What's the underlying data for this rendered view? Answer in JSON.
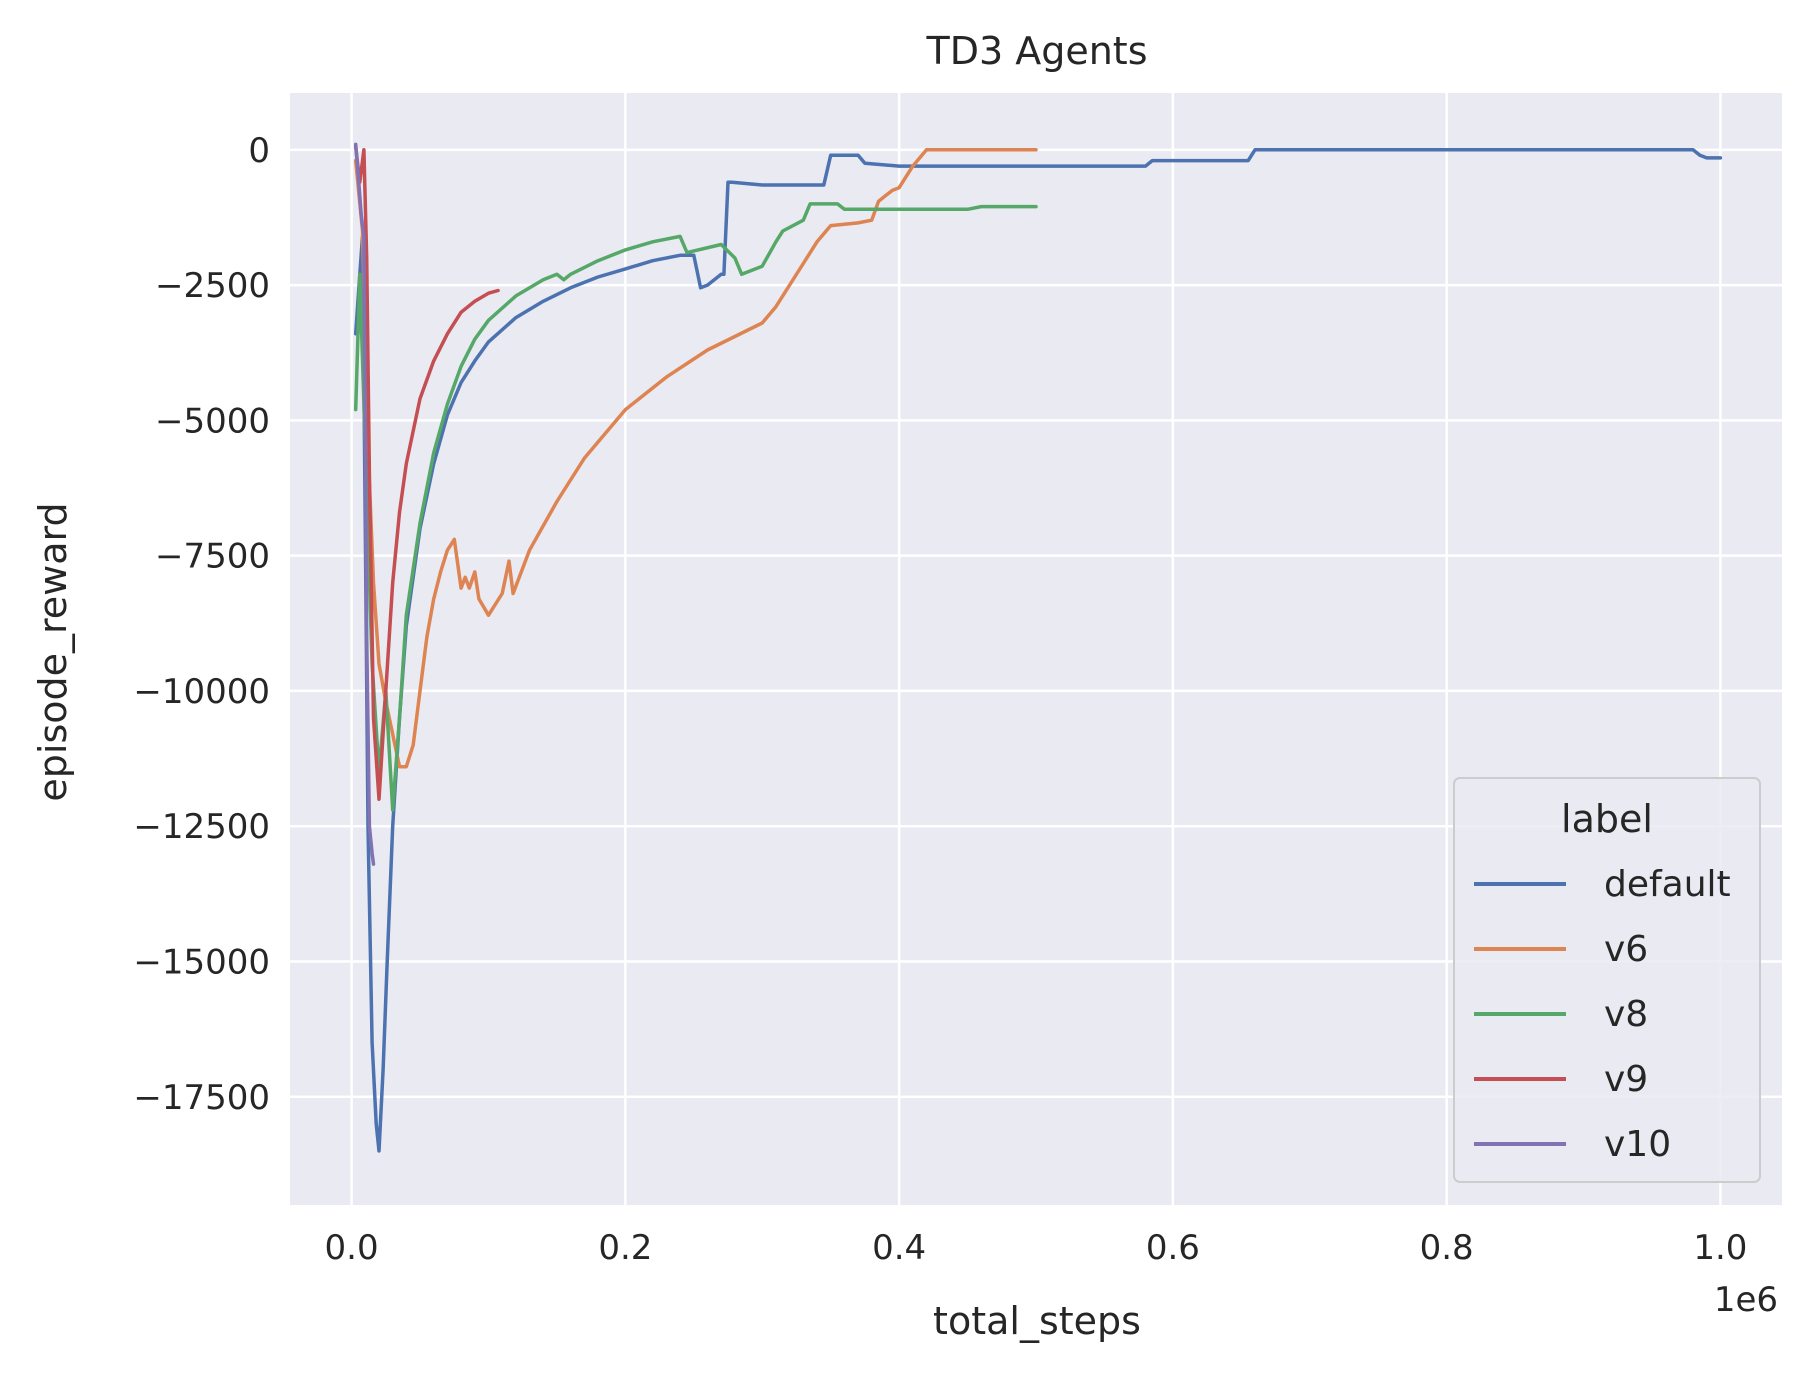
{
  "chart_data": {
    "type": "line",
    "title": "TD3 Agents",
    "xlabel": "total_steps",
    "ylabel": "episode_reward",
    "x_offset_label": "1e6",
    "xlim": [
      -0.045,
      1.045
    ],
    "ylim": [
      -19500,
      1050
    ],
    "xticks": [
      0.0,
      0.2,
      0.4,
      0.6,
      0.8,
      1.0
    ],
    "xtick_labels": [
      "0.0",
      "0.2",
      "0.4",
      "0.6",
      "0.8",
      "1.0"
    ],
    "yticks": [
      0,
      -2500,
      -5000,
      -7500,
      -10000,
      -12500,
      -15000,
      -17500
    ],
    "ytick_labels": [
      "0",
      "−2500",
      "−5000",
      "−7500",
      "−10000",
      "−12500",
      "−15000",
      "−17500"
    ],
    "grid": true,
    "background": "#eaeaf2",
    "legend": {
      "title": "label",
      "position": "lower-right"
    },
    "series": [
      {
        "name": "default",
        "color": "#4c72b0",
        "x": [
          0.003,
          0.006,
          0.008,
          0.01,
          0.012,
          0.015,
          0.018,
          0.02,
          0.023,
          0.026,
          0.03,
          0.035,
          0.04,
          0.05,
          0.06,
          0.07,
          0.08,
          0.09,
          0.1,
          0.12,
          0.14,
          0.16,
          0.18,
          0.2,
          0.22,
          0.24,
          0.25,
          0.255,
          0.26,
          0.27,
          0.272,
          0.275,
          0.278,
          0.3,
          0.345,
          0.35,
          0.37,
          0.375,
          0.4,
          0.58,
          0.585,
          0.655,
          0.66,
          0.67,
          0.9,
          0.98,
          0.985,
          0.99,
          1.0
        ],
        "y": [
          -3400,
          -2300,
          -1600,
          -7000,
          -12500,
          -16500,
          -18000,
          -18500,
          -17000,
          -15000,
          -12500,
          -10500,
          -8800,
          -7000,
          -5800,
          -4900,
          -4300,
          -3900,
          -3550,
          -3100,
          -2800,
          -2550,
          -2350,
          -2200,
          -2050,
          -1950,
          -1950,
          -2550,
          -2500,
          -2300,
          -2300,
          -600,
          -600,
          -650,
          -650,
          -100,
          -100,
          -250,
          -300,
          -300,
          -200,
          -200,
          0,
          0,
          0,
          0,
          -100,
          -150,
          -150
        ]
      },
      {
        "name": "v6",
        "color": "#dd8452",
        "x": [
          0.003,
          0.008,
          0.012,
          0.016,
          0.02,
          0.025,
          0.03,
          0.035,
          0.04,
          0.045,
          0.05,
          0.055,
          0.06,
          0.065,
          0.07,
          0.075,
          0.08,
          0.083,
          0.086,
          0.09,
          0.093,
          0.1,
          0.11,
          0.115,
          0.118,
          0.13,
          0.15,
          0.17,
          0.2,
          0.23,
          0.26,
          0.3,
          0.31,
          0.33,
          0.34,
          0.35,
          0.37,
          0.38,
          0.385,
          0.39,
          0.395,
          0.4,
          0.41,
          0.42,
          0.5
        ],
        "y": [
          -200,
          -1500,
          -5500,
          -8000,
          -9500,
          -10200,
          -10800,
          -11400,
          -11400,
          -11000,
          -10000,
          -9000,
          -8300,
          -7800,
          -7400,
          -7200,
          -8100,
          -7900,
          -8100,
          -7800,
          -8300,
          -8600,
          -8200,
          -7600,
          -8200,
          -7400,
          -6500,
          -5700,
          -4800,
          -4200,
          -3700,
          -3200,
          -2900,
          -2100,
          -1700,
          -1400,
          -1350,
          -1300,
          -950,
          -850,
          -750,
          -700,
          -300,
          0,
          0
        ]
      },
      {
        "name": "v8",
        "color": "#55a868",
        "x": [
          0.003,
          0.006,
          0.01,
          0.015,
          0.02,
          0.025,
          0.03,
          0.035,
          0.04,
          0.05,
          0.06,
          0.07,
          0.08,
          0.09,
          0.1,
          0.12,
          0.14,
          0.15,
          0.155,
          0.16,
          0.18,
          0.2,
          0.22,
          0.24,
          0.245,
          0.27,
          0.28,
          0.285,
          0.3,
          0.31,
          0.315,
          0.33,
          0.335,
          0.355,
          0.36,
          0.45,
          0.46,
          0.5
        ],
        "y": [
          -4800,
          -2300,
          -5500,
          -9500,
          -11500,
          -10000,
          -12200,
          -10500,
          -8600,
          -6900,
          -5600,
          -4700,
          -4000,
          -3500,
          -3150,
          -2700,
          -2400,
          -2300,
          -2400,
          -2300,
          -2050,
          -1850,
          -1700,
          -1600,
          -1900,
          -1750,
          -2000,
          -2300,
          -2150,
          -1700,
          -1500,
          -1300,
          -1000,
          -1000,
          -1100,
          -1100,
          -1050,
          -1050
        ]
      },
      {
        "name": "v9",
        "color": "#c44e52",
        "x": [
          0.003,
          0.006,
          0.009,
          0.011,
          0.013,
          0.016,
          0.02,
          0.025,
          0.03,
          0.035,
          0.04,
          0.05,
          0.06,
          0.07,
          0.08,
          0.09,
          0.1,
          0.107
        ],
        "y": [
          50,
          -600,
          0,
          -2000,
          -6000,
          -10500,
          -12000,
          -10000,
          -8000,
          -6700,
          -5800,
          -4600,
          -3900,
          -3400,
          -3000,
          -2800,
          -2650,
          -2600
        ]
      },
      {
        "name": "v10",
        "color": "#8172b3",
        "x": [
          0.003,
          0.005,
          0.007,
          0.009,
          0.011,
          0.013,
          0.015,
          0.016
        ],
        "y": [
          100,
          -500,
          -1200,
          -1600,
          -9000,
          -12500,
          -13000,
          -13200
        ]
      }
    ]
  }
}
